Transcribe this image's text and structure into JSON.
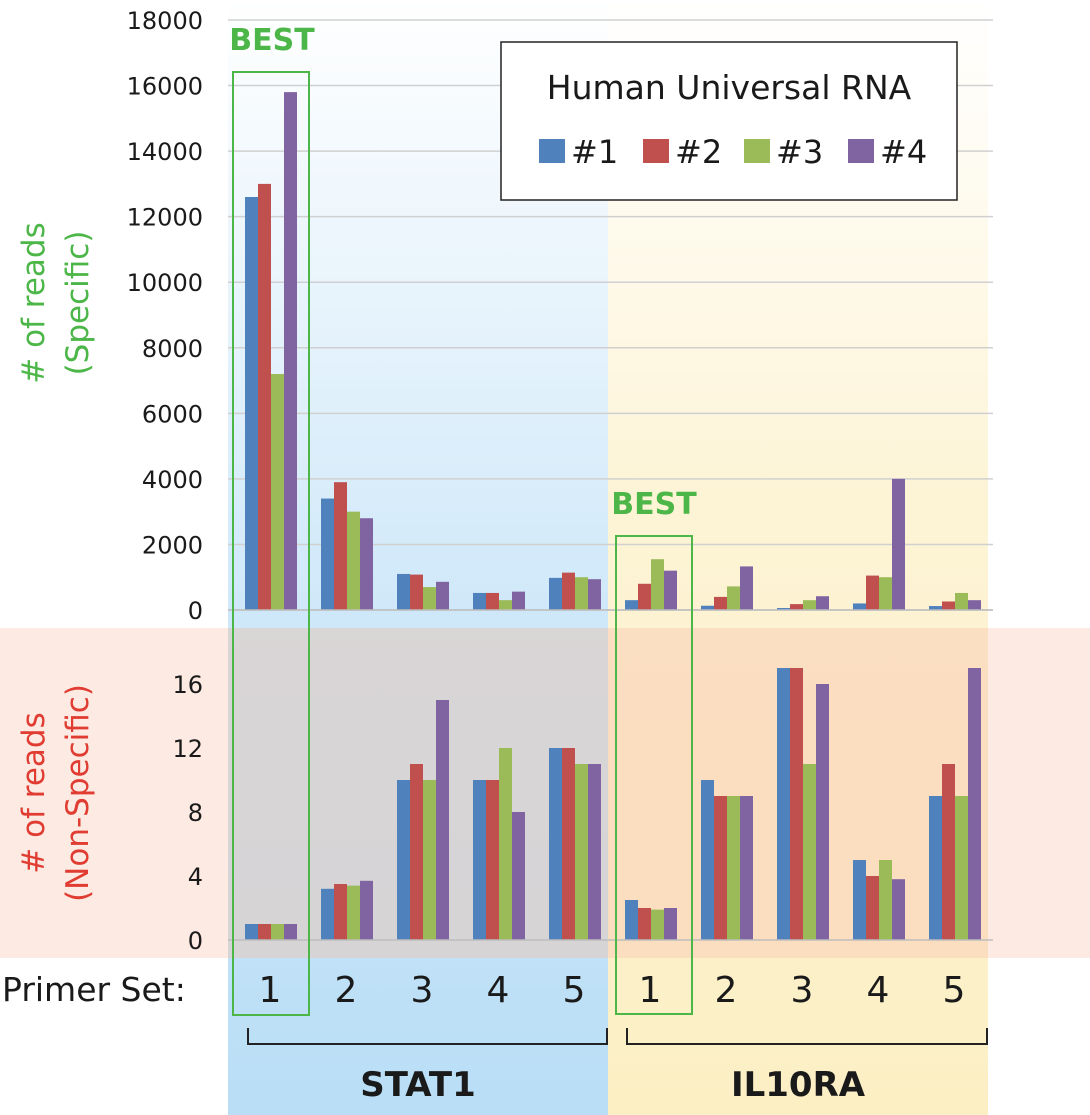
{
  "chart_data": {
    "type": "bar",
    "legend": {
      "title": "Human Universal RNA",
      "placement": "top-right"
    },
    "series_names": [
      "#1",
      "#2",
      "#3",
      "#4"
    ],
    "colors": [
      "#4f81bd",
      "#c0504d",
      "#9bbb59",
      "#8064a2"
    ],
    "groups": [
      {
        "name": "STAT1",
        "background": "#bfe1f7"
      },
      {
        "name": "IL10RA",
        "background": "#fdf1c9"
      }
    ],
    "x_axis_label": "Primer Set:",
    "x_ticks": [
      "1",
      "2",
      "3",
      "4",
      "5",
      "1",
      "2",
      "3",
      "4",
      "5"
    ],
    "best_label": "BEST",
    "best_indices": [
      0,
      5
    ],
    "panels": [
      {
        "id": "specific",
        "ylabel_line1": "# of reads",
        "ylabel_line2": "(Specific)",
        "ylabel_color": "#4cb748",
        "ylim": [
          0,
          18000
        ],
        "yticks": [
          0,
          2000,
          4000,
          6000,
          8000,
          10000,
          12000,
          14000,
          16000,
          18000
        ],
        "grid": true,
        "values": [
          [
            12600,
            13000,
            7200,
            15800
          ],
          [
            3400,
            3900,
            3000,
            2800
          ],
          [
            1100,
            1080,
            700,
            860
          ],
          [
            520,
            520,
            300,
            560
          ],
          [
            980,
            1140,
            1000,
            940
          ],
          [
            300,
            800,
            1550,
            1200
          ],
          [
            130,
            400,
            720,
            1330
          ],
          [
            60,
            180,
            300,
            420
          ],
          [
            200,
            1050,
            1000,
            4000
          ],
          [
            120,
            260,
            520,
            300
          ]
        ]
      },
      {
        "id": "non-specific",
        "ylabel_line1": "# of reads",
        "ylabel_line2": "(Non-Specific)",
        "ylabel_color": "#e03c31",
        "ylim": [
          0,
          18
        ],
        "yticks": [
          0,
          4,
          8,
          12,
          16
        ],
        "grid": false,
        "values": [
          [
            1,
            1,
            1,
            1
          ],
          [
            3.2,
            3.5,
            3.4,
            3.7
          ],
          [
            10,
            11,
            10,
            15
          ],
          [
            10,
            10,
            12,
            8
          ],
          [
            12,
            12,
            11,
            11
          ],
          [
            2.5,
            2,
            1.9,
            2
          ],
          [
            10,
            9,
            9,
            9
          ],
          [
            17,
            17,
            11,
            16
          ],
          [
            5,
            4,
            5,
            3.8
          ],
          [
            9,
            11,
            9,
            17
          ]
        ]
      }
    ]
  }
}
